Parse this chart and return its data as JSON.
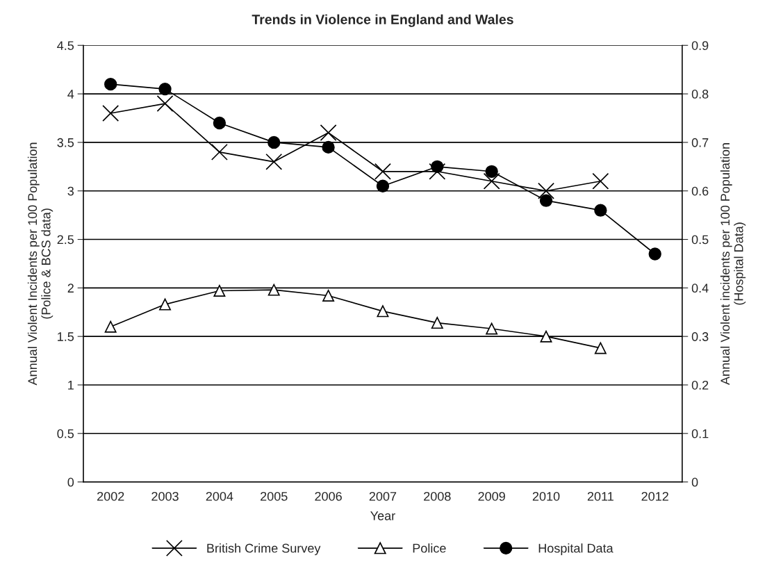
{
  "chart_data": {
    "type": "line",
    "title": "Trends in Violence in England and Wales",
    "xlabel": "Year",
    "ylabel": "Annual Violent Incidents per 100 Population\n(Police & BCS data)",
    "y2label": "Annual Violent incidents per 100 Population\n(Hospital Data)",
    "categories": [
      "2002",
      "2003",
      "2004",
      "2005",
      "2006",
      "2007",
      "2008",
      "2009",
      "2010",
      "2011",
      "2012"
    ],
    "series": [
      {
        "name": "British Crime Survey",
        "color": "#000000",
        "marker": "cross",
        "values": [
          3.8,
          3.9,
          3.4,
          3.3,
          3.6,
          3.2,
          3.2,
          3.1,
          3.0,
          3.1,
          null
        ]
      },
      {
        "name": "Police",
        "color": "#000000",
        "marker": "triangle",
        "values": [
          1.6,
          1.83,
          1.97,
          1.98,
          1.92,
          1.76,
          1.64,
          1.58,
          1.5,
          1.38,
          null
        ]
      },
      {
        "name": "Hospital Data",
        "color": "#000000",
        "marker": "circle",
        "axis": "y2",
        "values": [
          0.82,
          0.81,
          0.74,
          0.7,
          0.69,
          0.61,
          0.65,
          0.64,
          0.58,
          0.56,
          0.47
        ]
      }
    ],
    "ylim": [
      0,
      4.5
    ],
    "yticks": [
      0,
      0.5,
      1,
      1.5,
      2,
      2.5,
      3,
      3.5,
      4,
      4.5
    ],
    "y2lim": [
      0,
      0.9
    ],
    "y2ticks": [
      0,
      0.1,
      0.2,
      0.3,
      0.4,
      0.5,
      0.6,
      0.7,
      0.8,
      0.9
    ],
    "grid": "y",
    "legend": "bottom",
    "line_style": "solid"
  }
}
